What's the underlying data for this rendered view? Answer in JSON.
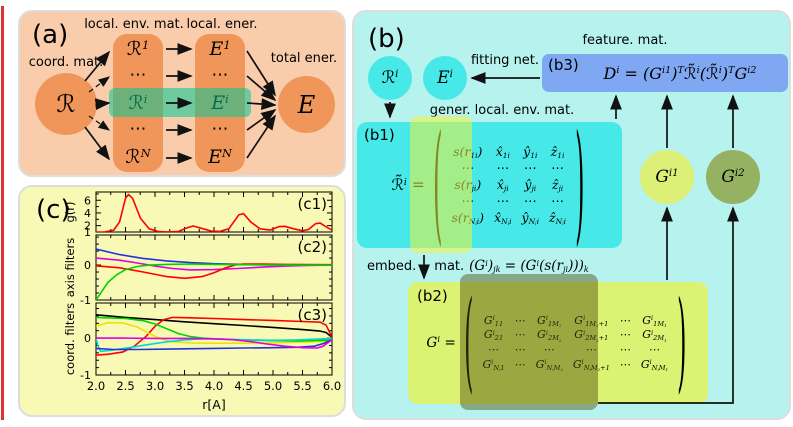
{
  "figure": {
    "background": "#ffffff",
    "artifact_line_color": "#e03131"
  },
  "colors": {
    "panel_a_bg": "#f9cdab",
    "panel_b_bg": "#b6f3ef",
    "panel_c_bg": "#f9f9b6",
    "orange": "#f0965a",
    "teal_highlight": "rgba(0,200,150,0.55)",
    "cyan_item": "#46e9e7",
    "b3_blue": "#7fa7f2",
    "b2_green": "#dcf272",
    "gi1_fill": "#dcf078",
    "gi2_fill": "#95b263",
    "yellow_overlay": "rgba(243,243,60,0.55)",
    "dark_overlay": "rgba(75,78,8,0.45)"
  },
  "panel_a": {
    "label": "(a)",
    "coord_mat_label": "coord. mat.",
    "env_mat_label": "local. env. mat.",
    "local_ener_label": "local. ener.",
    "total_ener_label": "total ener.",
    "R": "ℛ",
    "E": "E",
    "env_items": [
      "ℛ^{1}",
      "⋯",
      "ℛ^{i}",
      "⋯",
      "ℛ^{N}"
    ],
    "ener_items": [
      "E^{1}",
      "⋯",
      "E^{i}",
      "⋯",
      "E^{N}"
    ]
  },
  "panel_b": {
    "label": "(b)",
    "Ri": "ℛ^{i}",
    "Ei": "E^{i}",
    "fitting_net_label": "fitting net.",
    "feature_mat_label": "feature. mat.",
    "gener_label": "gener. local. env. mat.",
    "b3_label": "(b3)",
    "b3_equation": "D^{i} = (G^{i1})^{T}ℛ̃^{i}(ℛ̃^{i})^{T}G^{i2}",
    "b1_label": "(b1)",
    "b1_matrix": {
      "lhs": "ℛ̃^{i} =",
      "rows": [
        [
          "s(r_{1i})",
          "x̂_{1i}",
          "ŷ_{1i}",
          "ẑ_{1i}"
        ],
        [
          "⋯",
          "⋯",
          "⋯",
          "⋯"
        ],
        [
          "s(r_{ji})",
          "x̂_{ji}",
          "ŷ_{ji}",
          "ẑ_{ji}"
        ],
        [
          "⋯",
          "⋯",
          "⋯",
          "⋯"
        ],
        [
          "s(r_{N_{i}i})",
          "x̂_{N_{i}i}",
          "ŷ_{N_{i}i}",
          "ẑ_{N_{i}i}"
        ]
      ]
    },
    "embed_prefix1": "embed.",
    "embed_prefix2": "mat.",
    "embed_equation": "(G^{i})_{jk} = (G^{i}(s(r_{ji})))_{k}",
    "b2_label": "(b2)",
    "b2_matrix": {
      "lhs": "G^{i} =",
      "rows": [
        [
          "G^{i}_{11}",
          "⋯",
          "G^{i}_{1M_{2}}",
          "G^{i}_{1M_{2}+1}",
          "⋯",
          "G^{i}_{1M_{1}}"
        ],
        [
          "G^{i}_{21}",
          "⋯",
          "G^{i}_{2M_{2}}",
          "G^{i}_{2M_{2}+1}",
          "⋯",
          "G^{i}_{2M_{1}}"
        ],
        [
          "⋯",
          "⋯",
          "⋯",
          "⋯",
          "⋯",
          "⋯"
        ],
        [
          "G^{i}_{N_{i}1}",
          "⋯",
          "G^{i}_{N_{i}M_{2}}",
          "G^{i}_{N_{i}M_{2}+1}",
          "⋯",
          "G^{i}_{N_{i}M_{1}}"
        ]
      ]
    },
    "Gi1": "G^{i1}",
    "Gi2": "G^{i2}"
  },
  "chart_data": {
    "type": "line",
    "panel_label": "(c)",
    "xlabel": "r[A]",
    "xrange": [
      2.0,
      6.0
    ],
    "xtick_labels": [
      "2.0",
      "2.5",
      "3.0",
      "3.5",
      "4.0",
      "4.5",
      "5.0",
      "5.5",
      "6.0"
    ],
    "grid": false,
    "subplots": [
      {
        "label": "(c1)",
        "ylabel": "g(r)",
        "yrange": [
          1,
          7.3
        ],
        "ytick_values": [
          6,
          4,
          2,
          1
        ],
        "ytick_labels": [
          "6",
          "4",
          "2",
          "1"
        ],
        "yminor": [
          3,
          5,
          7
        ],
        "series": [
          {
            "name": "g-of-r",
            "color": "#ff0000",
            "points": [
              [
                2.0,
                1.0
              ],
              [
                2.15,
                1.02
              ],
              [
                2.3,
                1.3
              ],
              [
                2.4,
                2.6
              ],
              [
                2.5,
                6.3
              ],
              [
                2.55,
                6.9
              ],
              [
                2.62,
                6.3
              ],
              [
                2.75,
                3.2
              ],
              [
                2.9,
                1.5
              ],
              [
                3.05,
                1.1
              ],
              [
                3.2,
                1.02
              ],
              [
                3.4,
                1.1
              ],
              [
                3.55,
                1.7
              ],
              [
                3.65,
                1.95
              ],
              [
                3.78,
                1.6
              ],
              [
                3.95,
                1.15
              ],
              [
                4.1,
                1.1
              ],
              [
                4.25,
                1.5
              ],
              [
                4.42,
                3.7
              ],
              [
                4.5,
                3.9
              ],
              [
                4.62,
                2.6
              ],
              [
                4.78,
                1.5
              ],
              [
                4.95,
                1.3
              ],
              [
                5.1,
                1.85
              ],
              [
                5.2,
                1.9
              ],
              [
                5.35,
                1.5
              ],
              [
                5.5,
                1.2
              ],
              [
                5.6,
                1.4
              ],
              [
                5.72,
                2.3
              ],
              [
                5.8,
                2.4
              ],
              [
                5.92,
                1.7
              ],
              [
                6.0,
                1.3
              ]
            ]
          }
        ]
      },
      {
        "label": "(c2)",
        "ylabel": "axis filters",
        "yrange": [
          -1,
          0.86
        ],
        "ytick_values": [
          0,
          -1
        ],
        "ytick_labels": [
          "0",
          "-1"
        ],
        "yminor": [
          0.8,
          0.6,
          0.4,
          0.2,
          -0.2,
          -0.4,
          -0.6,
          -0.8
        ],
        "series": [
          {
            "name": "filter-blue",
            "color": "#2233dd",
            "points": [
              [
                2.0,
                0.46
              ],
              [
                2.4,
                0.3
              ],
              [
                2.8,
                0.19
              ],
              [
                3.2,
                0.12
              ],
              [
                3.6,
                0.07
              ],
              [
                4.0,
                0.04
              ],
              [
                4.5,
                0.02
              ],
              [
                5.0,
                0.01
              ],
              [
                6.0,
                0.0
              ]
            ]
          },
          {
            "name": "filter-magenta",
            "color": "#e000e0",
            "points": [
              [
                2.0,
                0.2
              ],
              [
                2.4,
                0.14
              ],
              [
                2.7,
                0.06
              ],
              [
                3.0,
                -0.03
              ],
              [
                3.3,
                -0.1
              ],
              [
                3.6,
                -0.14
              ],
              [
                4.0,
                -0.13
              ],
              [
                4.4,
                -0.1
              ],
              [
                4.8,
                -0.06
              ],
              [
                5.2,
                -0.03
              ],
              [
                5.6,
                -0.01
              ],
              [
                6.0,
                0.0
              ]
            ]
          },
          {
            "name": "filter-red",
            "color": "#ff0000",
            "points": [
              [
                2.0,
                -0.02
              ],
              [
                2.4,
                -0.08
              ],
              [
                2.8,
                -0.2
              ],
              [
                3.2,
                -0.33
              ],
              [
                3.5,
                -0.38
              ],
              [
                3.8,
                -0.33
              ],
              [
                4.0,
                -0.22
              ],
              [
                4.2,
                -0.08
              ],
              [
                4.35,
                0.0
              ],
              [
                4.5,
                0.03
              ],
              [
                4.8,
                0.03
              ],
              [
                5.2,
                0.02
              ],
              [
                6.0,
                0.01
              ]
            ]
          },
          {
            "name": "filter-green",
            "color": "#00d400",
            "points": [
              [
                2.0,
                -1.0
              ],
              [
                2.1,
                -0.75
              ],
              [
                2.2,
                -0.5
              ],
              [
                2.35,
                -0.28
              ],
              [
                2.5,
                -0.13
              ],
              [
                2.7,
                -0.04
              ],
              [
                2.9,
                0.0
              ],
              [
                3.2,
                0.02
              ],
              [
                3.6,
                0.03
              ],
              [
                4.0,
                0.02
              ],
              [
                4.5,
                0.01
              ],
              [
                5.0,
                0.0
              ],
              [
                6.0,
                0.0
              ]
            ]
          }
        ]
      },
      {
        "label": "(c3)",
        "ylabel": "coord. filters",
        "yrange": [
          -1,
          0.95
        ],
        "ytick_values": [
          0,
          -1
        ],
        "ytick_labels": [
          "0",
          "-1"
        ],
        "yminor": [
          0.8,
          0.6,
          0.4,
          0.2,
          -0.2,
          -0.4,
          -0.6,
          -0.8
        ],
        "series": [
          {
            "name": "filter-black",
            "color": "#000000",
            "points": [
              [
                2.0,
                0.63
              ],
              [
                2.5,
                0.56
              ],
              [
                3.0,
                0.5
              ],
              [
                3.5,
                0.44
              ],
              [
                4.0,
                0.39
              ],
              [
                4.5,
                0.34
              ],
              [
                5.0,
                0.29
              ],
              [
                5.5,
                0.23
              ],
              [
                5.8,
                0.19
              ],
              [
                5.9,
                0.15
              ],
              [
                6.0,
                0.02
              ]
            ]
          },
          {
            "name": "filter-red",
            "color": "#ff0000",
            "points": [
              [
                2.0,
                -0.46
              ],
              [
                2.2,
                -0.44
              ],
              [
                2.45,
                -0.38
              ],
              [
                2.65,
                -0.22
              ],
              [
                2.85,
                0.05
              ],
              [
                3.0,
                0.32
              ],
              [
                3.15,
                0.5
              ],
              [
                3.3,
                0.56
              ],
              [
                3.6,
                0.55
              ],
              [
                4.0,
                0.53
              ],
              [
                4.5,
                0.5
              ],
              [
                5.0,
                0.48
              ],
              [
                5.5,
                0.45
              ],
              [
                5.8,
                0.43
              ],
              [
                5.9,
                0.35
              ],
              [
                6.0,
                0.03
              ]
            ]
          },
          {
            "name": "filter-yellow",
            "color": "#e8e400",
            "points": [
              [
                2.0,
                0.32
              ],
              [
                2.2,
                0.42
              ],
              [
                2.45,
                0.41
              ],
              [
                2.7,
                0.3
              ],
              [
                2.9,
                0.12
              ],
              [
                3.1,
                -0.02
              ],
              [
                3.3,
                -0.1
              ],
              [
                3.6,
                -0.13
              ],
              [
                4.0,
                -0.14
              ],
              [
                4.5,
                -0.14
              ],
              [
                5.0,
                -0.13
              ],
              [
                5.5,
                -0.11
              ],
              [
                5.85,
                -0.09
              ],
              [
                6.0,
                -0.04
              ]
            ]
          },
          {
            "name": "filter-green",
            "color": "#00d400",
            "points": [
              [
                2.0,
                0.56
              ],
              [
                2.5,
                0.53
              ],
              [
                2.8,
                0.47
              ],
              [
                3.0,
                0.38
              ],
              [
                3.2,
                0.25
              ],
              [
                3.4,
                0.12
              ],
              [
                3.6,
                0.04
              ],
              [
                3.8,
                0.0
              ],
              [
                4.1,
                -0.03
              ],
              [
                4.5,
                -0.05
              ],
              [
                5.0,
                -0.07
              ],
              [
                5.5,
                -0.08
              ],
              [
                6.0,
                -0.05
              ]
            ]
          },
          {
            "name": "filter-cyan",
            "color": "#00d8d8",
            "points": [
              [
                2.0,
                0.0
              ],
              [
                2.03,
                -0.2
              ],
              [
                2.08,
                -0.36
              ],
              [
                2.3,
                -0.32
              ],
              [
                2.6,
                -0.25
              ],
              [
                2.9,
                -0.17
              ],
              [
                3.2,
                -0.1
              ],
              [
                3.5,
                -0.05
              ],
              [
                3.8,
                -0.02
              ],
              [
                4.2,
                -0.03
              ],
              [
                4.6,
                -0.05
              ],
              [
                5.0,
                -0.06
              ],
              [
                5.4,
                -0.05
              ],
              [
                5.7,
                -0.03
              ],
              [
                6.0,
                -0.01
              ]
            ]
          },
          {
            "name": "filter-blue",
            "color": "#2233dd",
            "points": [
              [
                2.0,
                -0.28
              ],
              [
                2.3,
                -0.31
              ],
              [
                2.7,
                -0.31
              ],
              [
                3.1,
                -0.3
              ],
              [
                3.5,
                -0.29
              ],
              [
                4.0,
                -0.28
              ],
              [
                4.5,
                -0.27
              ],
              [
                5.0,
                -0.26
              ],
              [
                5.4,
                -0.25
              ],
              [
                5.7,
                -0.22
              ],
              [
                5.85,
                -0.15
              ],
              [
                6.0,
                -0.04
              ]
            ]
          },
          {
            "name": "filter-magenta",
            "color": "#e000e0",
            "points": [
              [
                2.0,
                0.0
              ],
              [
                2.5,
                0.0
              ],
              [
                3.0,
                -0.01
              ],
              [
                3.5,
                -0.01
              ],
              [
                4.0,
                -0.02
              ],
              [
                4.3,
                -0.04
              ],
              [
                4.6,
                -0.09
              ],
              [
                4.9,
                -0.16
              ],
              [
                5.2,
                -0.22
              ],
              [
                5.5,
                -0.26
              ],
              [
                5.75,
                -0.27
              ],
              [
                5.85,
                -0.22
              ],
              [
                5.95,
                -0.1
              ],
              [
                6.0,
                -0.04
              ]
            ]
          }
        ]
      }
    ]
  }
}
